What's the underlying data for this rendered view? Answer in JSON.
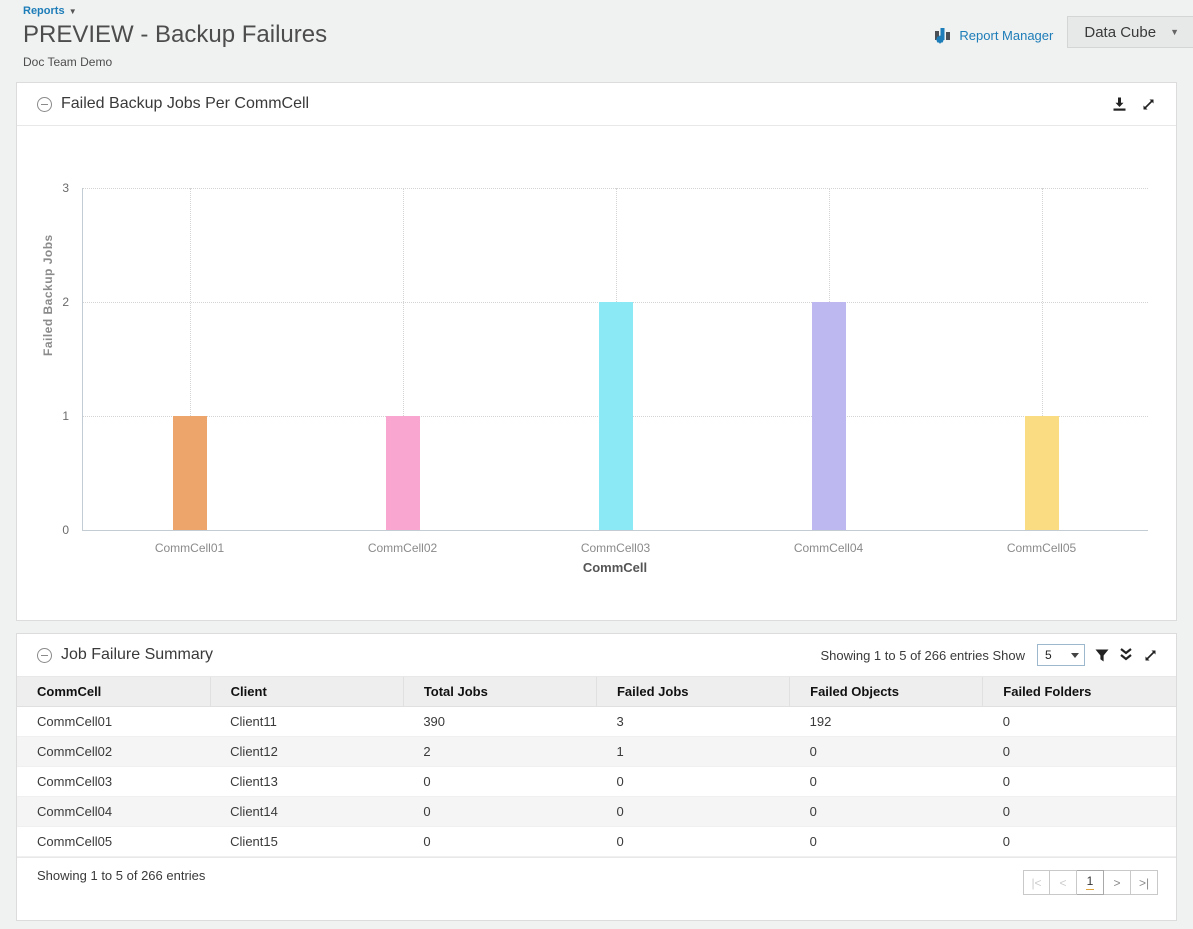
{
  "page": {
    "breadcrumb": "Reports",
    "breadcrumb_caret": "▼",
    "title": "PREVIEW - Backup Failures",
    "subtitle": "Doc Team Demo",
    "report_manager_label": "Report Manager",
    "data_cube_label": "Data Cube"
  },
  "icons": {
    "breadcrumb-caret": "small down triangle",
    "report-manager-icon": "blue bar-chart with gear",
    "data-cube-caret": "down triangle",
    "collapse-icon": "circled minus",
    "download-icon": "arrow down to bar",
    "expand-icon": "diagonal resize arrows",
    "filter-icon": "funnel",
    "collapse-rows-icon": "double chevron down"
  },
  "colors": {
    "accent_blue": "#1d7db8",
    "page_bg": "#f0f1f1",
    "panel_border": "#dcdcdc",
    "table_header_bg": "#eeeeee",
    "alt_row_bg": "#f5f5f5",
    "grid_dotted": "#d4d4d4",
    "axis_line": "#c3ccd3",
    "current_page_underline": "#e0a23c"
  },
  "chart_panel": {
    "title": "Failed Backup Jobs Per CommCell"
  },
  "chart_data": {
    "type": "bar",
    "title": "Failed Backup Jobs Per CommCell",
    "categories": [
      "CommCell01",
      "CommCell02",
      "CommCell03",
      "CommCell04",
      "CommCell05"
    ],
    "values": [
      1,
      1,
      2,
      2,
      1
    ],
    "bar_colors": [
      "#eda56c",
      "#f9a7d0",
      "#8be9f5",
      "#beb8f1",
      "#fadd82"
    ],
    "xlabel": "CommCell",
    "ylabel": "Failed Backup Jobs",
    "ylim": [
      0,
      3
    ],
    "yticks": [
      0,
      1,
      2,
      3
    ],
    "grid": "dotted horizontal and vertical at category centers",
    "legend": "none"
  },
  "table_panel": {
    "title": "Job Failure Summary",
    "showing_text": "Showing 1 to 5 of 266 entries",
    "show_label": "Show",
    "page_size": "5",
    "columns": [
      "CommCell",
      "Client",
      "Total Jobs",
      "Failed Jobs",
      "Failed Objects",
      "Failed Folders"
    ],
    "rows": [
      [
        "CommCell01",
        "Client11",
        "390",
        "3",
        "192",
        "0"
      ],
      [
        "CommCell02",
        "Client12",
        "2",
        "1",
        "0",
        "0"
      ],
      [
        "CommCell03",
        "Client13",
        "0",
        "0",
        "0",
        "0"
      ],
      [
        "CommCell04",
        "Client14",
        "0",
        "0",
        "0",
        "0"
      ],
      [
        "CommCell05",
        "Client15",
        "0",
        "0",
        "0",
        "0"
      ]
    ],
    "footer_text": "Showing 1 to 5 of 266 entries",
    "pagination": {
      "first": "|<",
      "prev": "<",
      "current": "1",
      "next": ">",
      "last": ">|"
    }
  }
}
